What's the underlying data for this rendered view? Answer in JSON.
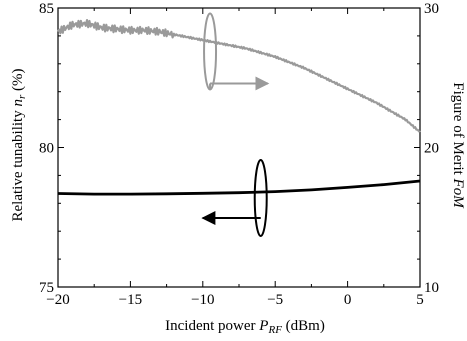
{
  "chart_data": {
    "type": "line",
    "title": "",
    "x_axis": {
      "label_prefix": "Incident power ",
      "label_symbol": "P",
      "label_subscript": "RF",
      "label_suffix": " (dBm)",
      "range": [
        -20,
        5
      ],
      "ticks": [
        -20,
        -15,
        -10,
        -5,
        0,
        5
      ],
      "tick_labels": [
        "−20",
        "−15",
        "−10",
        "−5",
        "0",
        "5"
      ]
    },
    "y_axis_left": {
      "label_prefix": "Relative tunability ",
      "label_symbol": "n",
      "label_subscript": "r",
      "label_suffix": " (%)",
      "range": [
        75,
        85
      ],
      "ticks": [
        75,
        80,
        85
      ],
      "tick_labels": [
        "75",
        "80",
        "85"
      ]
    },
    "y_axis_right": {
      "label_prefix": "Figure of Merit ",
      "label_symbol": "FoM",
      "range": [
        10,
        30
      ],
      "ticks": [
        10,
        20,
        30
      ],
      "tick_labels": [
        "10",
        "20",
        "30"
      ]
    },
    "grid": false,
    "legend": "none",
    "series": [
      {
        "axis": "left",
        "color": "#000000",
        "x": [
          -20,
          -17.5,
          -15,
          -12.5,
          -10,
          -7.5,
          -5,
          -2.5,
          0,
          2.5,
          5
        ],
        "y": [
          78.35,
          78.33,
          78.33,
          78.34,
          78.36,
          78.38,
          78.42,
          78.48,
          78.57,
          78.67,
          78.8
        ]
      },
      {
        "axis": "right",
        "color": "#9a9a9a",
        "x": [
          -20,
          -19,
          -18,
          -17,
          -16,
          -15,
          -14,
          -13,
          -12,
          -11,
          -10,
          -9,
          -8,
          -7,
          -6,
          -5,
          -4,
          -3,
          -2,
          -1,
          0,
          1,
          2,
          3,
          4,
          5
        ],
        "y": [
          28.3,
          28.8,
          28.9,
          28.6,
          28.5,
          28.4,
          28.4,
          28.3,
          28.1,
          27.9,
          27.7,
          27.5,
          27.3,
          27.1,
          26.8,
          26.5,
          26.1,
          25.7,
          25.2,
          24.7,
          24.2,
          23.7,
          23.2,
          22.6,
          22.0,
          21.1
        ]
      }
    ],
    "annotations": [
      {
        "type": "ellipse-arrow",
        "series": 0,
        "at_x": -6,
        "arrow_to_x": -10,
        "axis_pointed": "left"
      },
      {
        "type": "ellipse-arrow",
        "series": 1,
        "at_x": -9.5,
        "arrow_to_x": -5.5,
        "axis_pointed": "right"
      }
    ]
  }
}
